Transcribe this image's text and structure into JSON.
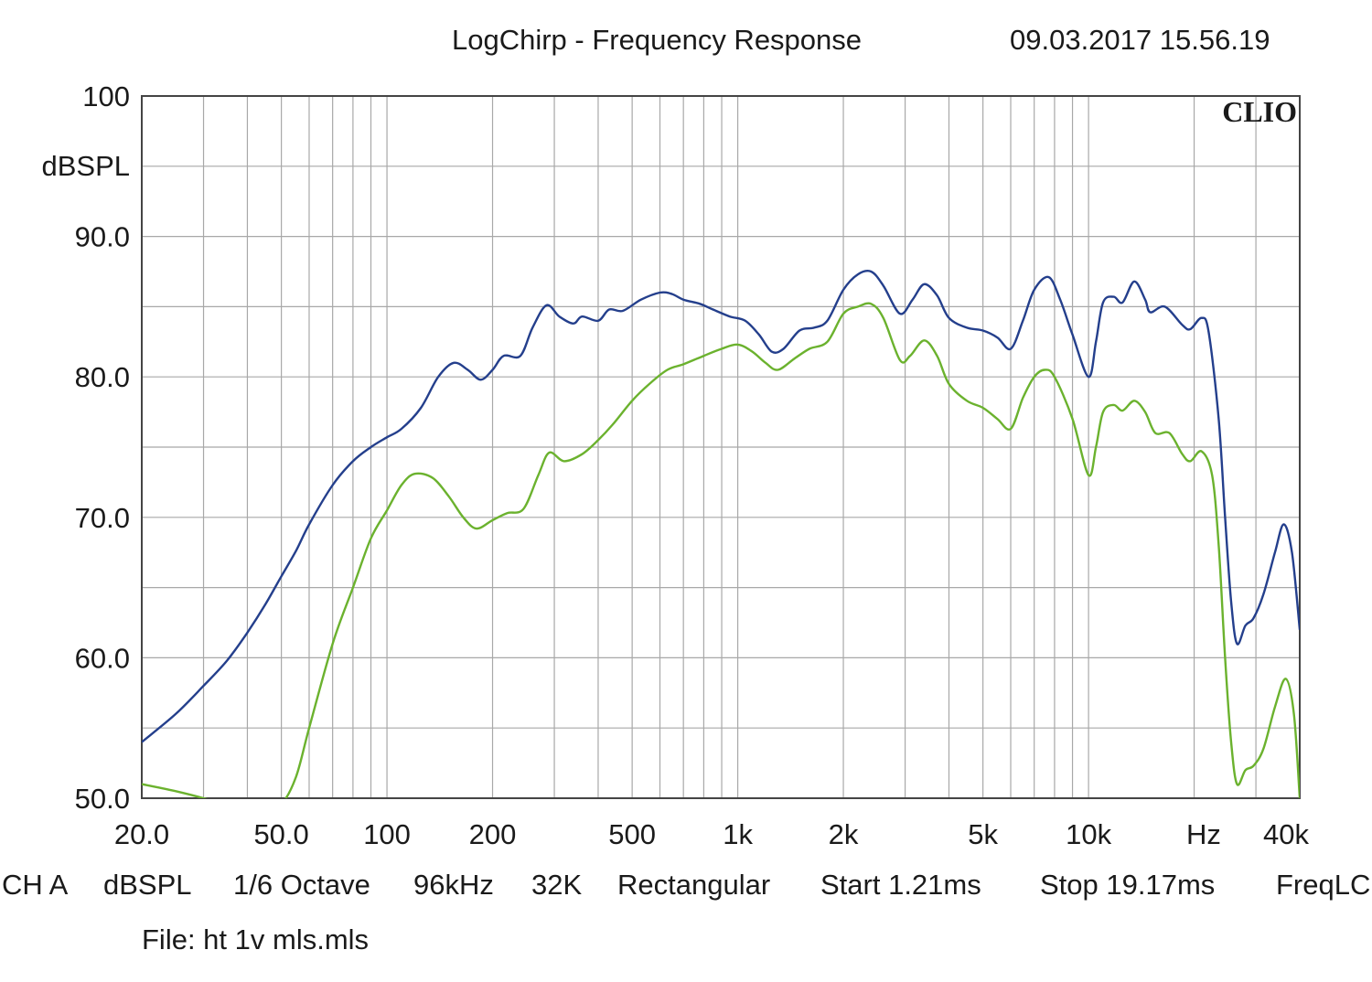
{
  "header": {
    "title": "LogChirp - Frequency Response",
    "timestamp": "09.03.2017 15.56.19"
  },
  "brand": "CLIO",
  "footer": {
    "fields": [
      "CH A",
      "dBSPL",
      "1/6 Octave",
      "96kHz",
      "32K",
      "Rectangular",
      "Start 1.21ms",
      "Stop 19.17ms",
      "FreqLC"
    ],
    "file": "File: ht 1v mls.mls"
  },
  "chart_data": {
    "type": "line",
    "title": "LogChirp - Frequency Response",
    "xlabel": "Hz",
    "ylabel": "dBSPL",
    "x_scale": "log",
    "xlim": [
      20,
      40000
    ],
    "ylim": [
      50,
      100
    ],
    "grid": true,
    "y_ticks": [
      {
        "value": 100,
        "label": "100"
      },
      {
        "value": 90,
        "label": "90.0"
      },
      {
        "value": 80,
        "label": "80.0"
      },
      {
        "value": 70,
        "label": "70.0"
      },
      {
        "value": 60,
        "label": "60.0"
      },
      {
        "value": 50,
        "label": "50.0"
      }
    ],
    "x_ticks": [
      {
        "value": 20,
        "label": "20.0"
      },
      {
        "value": 50,
        "label": "50.0"
      },
      {
        "value": 100,
        "label": "100"
      },
      {
        "value": 200,
        "label": "200"
      },
      {
        "value": 500,
        "label": "500"
      },
      {
        "value": 1000,
        "label": "1k"
      },
      {
        "value": 2000,
        "label": "2k"
      },
      {
        "value": 5000,
        "label": "5k"
      },
      {
        "value": 10000,
        "label": "10k"
      },
      {
        "value": 40000,
        "label": "40k"
      }
    ],
    "series": [
      {
        "color": "#243f8c",
        "points": [
          [
            20,
            54.0
          ],
          [
            25,
            56.0
          ],
          [
            30,
            58.0
          ],
          [
            35,
            59.8
          ],
          [
            40,
            61.8
          ],
          [
            45,
            63.8
          ],
          [
            50,
            65.8
          ],
          [
            55,
            67.6
          ],
          [
            60,
            69.5
          ],
          [
            70,
            72.3
          ],
          [
            80,
            74.0
          ],
          [
            90,
            75.0
          ],
          [
            100,
            75.7
          ],
          [
            110,
            76.3
          ],
          [
            125,
            77.8
          ],
          [
            140,
            80.0
          ],
          [
            155,
            81.0
          ],
          [
            170,
            80.5
          ],
          [
            185,
            79.8
          ],
          [
            200,
            80.5
          ],
          [
            215,
            81.5
          ],
          [
            240,
            81.5
          ],
          [
            260,
            83.5
          ],
          [
            285,
            85.1
          ],
          [
            310,
            84.3
          ],
          [
            340,
            83.8
          ],
          [
            360,
            84.3
          ],
          [
            400,
            84.0
          ],
          [
            430,
            84.8
          ],
          [
            470,
            84.7
          ],
          [
            530,
            85.5
          ],
          [
            600,
            86.0
          ],
          [
            650,
            85.9
          ],
          [
            700,
            85.5
          ],
          [
            780,
            85.2
          ],
          [
            850,
            84.8
          ],
          [
            950,
            84.3
          ],
          [
            1050,
            84.0
          ],
          [
            1150,
            83.0
          ],
          [
            1250,
            81.8
          ],
          [
            1350,
            82.0
          ],
          [
            1500,
            83.3
          ],
          [
            1650,
            83.5
          ],
          [
            1800,
            84.0
          ],
          [
            2000,
            86.2
          ],
          [
            2200,
            87.3
          ],
          [
            2400,
            87.5
          ],
          [
            2600,
            86.5
          ],
          [
            2900,
            84.5
          ],
          [
            3150,
            85.5
          ],
          [
            3400,
            86.6
          ],
          [
            3700,
            85.8
          ],
          [
            4000,
            84.2
          ],
          [
            4500,
            83.5
          ],
          [
            5000,
            83.3
          ],
          [
            5500,
            82.8
          ],
          [
            6000,
            82.0
          ],
          [
            6500,
            84.0
          ],
          [
            7000,
            86.2
          ],
          [
            7700,
            87.1
          ],
          [
            8300,
            85.5
          ],
          [
            9000,
            83.0
          ],
          [
            10000,
            80.0
          ],
          [
            10500,
            82.5
          ],
          [
            11000,
            85.3
          ],
          [
            11800,
            85.7
          ],
          [
            12500,
            85.3
          ],
          [
            13500,
            86.8
          ],
          [
            14500,
            85.5
          ],
          [
            15000,
            84.6
          ],
          [
            16500,
            85.0
          ],
          [
            18500,
            83.7
          ],
          [
            19500,
            83.4
          ],
          [
            21000,
            84.2
          ],
          [
            22000,
            83.2
          ],
          [
            23500,
            77.0
          ],
          [
            24500,
            70.0
          ],
          [
            25500,
            64.0
          ],
          [
            26500,
            61.0
          ],
          [
            28000,
            62.3
          ],
          [
            29500,
            62.8
          ],
          [
            31500,
            64.5
          ],
          [
            34000,
            67.5
          ],
          [
            36000,
            69.5
          ],
          [
            38000,
            67.5
          ],
          [
            40000,
            62.0
          ]
        ]
      },
      {
        "color": "#6bb22e",
        "points": [
          [
            20,
            51.0
          ],
          [
            25,
            50.5
          ],
          [
            30,
            50.0
          ],
          [
            35,
            49.5
          ],
          [
            40,
            49.3
          ],
          [
            45,
            49.5
          ],
          [
            50,
            49.6
          ],
          [
            55,
            51.5
          ],
          [
            60,
            55.0
          ],
          [
            70,
            61.0
          ],
          [
            80,
            65.0
          ],
          [
            90,
            68.5
          ],
          [
            100,
            70.5
          ],
          [
            110,
            72.3
          ],
          [
            120,
            73.1
          ],
          [
            135,
            72.8
          ],
          [
            150,
            71.5
          ],
          [
            165,
            70.0
          ],
          [
            180,
            69.2
          ],
          [
            200,
            69.8
          ],
          [
            220,
            70.3
          ],
          [
            245,
            70.6
          ],
          [
            270,
            73.0
          ],
          [
            290,
            74.6
          ],
          [
            320,
            74.0
          ],
          [
            360,
            74.5
          ],
          [
            400,
            75.5
          ],
          [
            440,
            76.6
          ],
          [
            500,
            78.3
          ],
          [
            560,
            79.5
          ],
          [
            630,
            80.5
          ],
          [
            700,
            80.9
          ],
          [
            800,
            81.5
          ],
          [
            900,
            82.0
          ],
          [
            1000,
            82.3
          ],
          [
            1100,
            81.8
          ],
          [
            1200,
            81.0
          ],
          [
            1300,
            80.5
          ],
          [
            1450,
            81.3
          ],
          [
            1600,
            82.0
          ],
          [
            1800,
            82.5
          ],
          [
            2000,
            84.5
          ],
          [
            2200,
            85.0
          ],
          [
            2400,
            85.2
          ],
          [
            2600,
            84.2
          ],
          [
            2900,
            81.2
          ],
          [
            3100,
            81.5
          ],
          [
            3400,
            82.6
          ],
          [
            3700,
            81.5
          ],
          [
            4000,
            79.5
          ],
          [
            4500,
            78.3
          ],
          [
            5000,
            77.8
          ],
          [
            5500,
            77.0
          ],
          [
            6000,
            76.3
          ],
          [
            6500,
            78.5
          ],
          [
            7000,
            80.0
          ],
          [
            7500,
            80.5
          ],
          [
            8000,
            80.0
          ],
          [
            9000,
            77.0
          ],
          [
            10000,
            73.0
          ],
          [
            10500,
            75.0
          ],
          [
            11000,
            77.5
          ],
          [
            11800,
            78.0
          ],
          [
            12500,
            77.6
          ],
          [
            13500,
            78.3
          ],
          [
            14500,
            77.5
          ],
          [
            15500,
            76.0
          ],
          [
            17000,
            76.0
          ],
          [
            18500,
            74.5
          ],
          [
            19500,
            74.0
          ],
          [
            21000,
            74.7
          ],
          [
            22500,
            73.0
          ],
          [
            23500,
            68.0
          ],
          [
            24500,
            60.0
          ],
          [
            25500,
            54.0
          ],
          [
            26500,
            51.0
          ],
          [
            28000,
            52.0
          ],
          [
            29500,
            52.3
          ],
          [
            31500,
            53.5
          ],
          [
            34000,
            56.5
          ],
          [
            36500,
            58.5
          ],
          [
            38500,
            56.0
          ],
          [
            40000,
            50.0
          ]
        ]
      }
    ]
  }
}
